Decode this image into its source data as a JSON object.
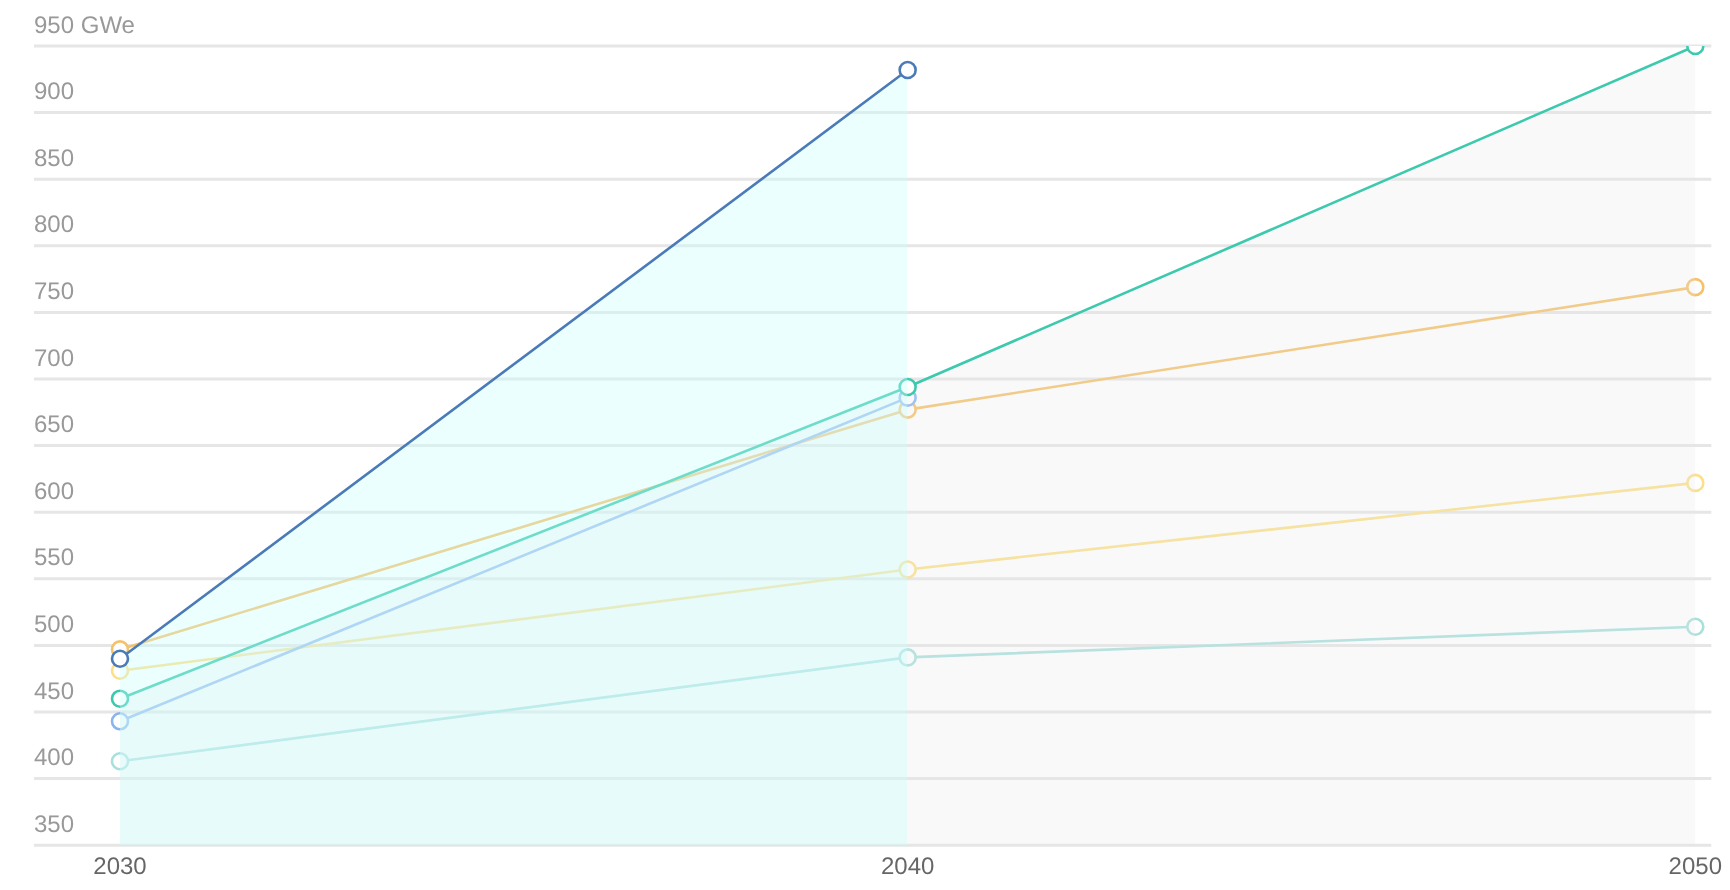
{
  "chart_data": {
    "type": "line",
    "categories": [
      "2030",
      "2040",
      "2050"
    ],
    "series": [
      {
        "type": "area",
        "color": "#4a7ab8",
        "values": [
          490,
          932,
          null
        ]
      },
      {
        "type": "area",
        "color": "#3cc9ad",
        "values": [
          460,
          694,
          950
        ]
      },
      {
        "color": "#8ab4f0",
        "values": [
          443,
          686,
          null
        ]
      },
      {
        "color": "#f5c26b",
        "values": [
          497,
          677,
          769
        ]
      },
      {
        "color": "#fbe08a",
        "values": [
          481,
          557,
          622
        ]
      },
      {
        "color": "#a8e0dc",
        "values": [
          413,
          491,
          514
        ]
      }
    ],
    "ylim": [
      350,
      950
    ],
    "yticks": [
      350,
      400,
      450,
      500,
      550,
      600,
      650,
      700,
      750,
      800,
      850,
      900,
      {
        "value": 950,
        "label": "950 GWe"
      }
    ],
    "grid": "y",
    "legend": false,
    "marker": "circle",
    "line_style": "solid"
  }
}
